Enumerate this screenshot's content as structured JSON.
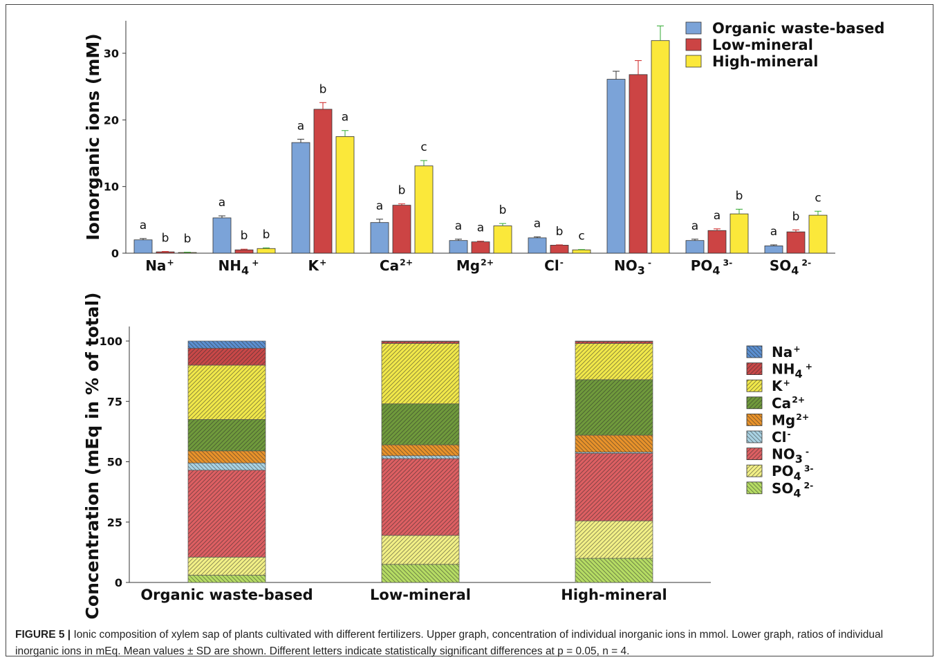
{
  "colors": {
    "organic": "#7ba3d8",
    "low": "#cc4444",
    "high": "#fbe83a",
    "Na": "#5b8fd0",
    "NH4": "#c84848",
    "K": "#f1e84a",
    "Ca": "#6f9a3c",
    "Mg": "#e8922a",
    "Cl": "#a9d2e3",
    "NO3": "#dd5f62",
    "PO4": "#f2f086",
    "SO4": "#b5dc63"
  },
  "chart_data": [
    {
      "type": "bar",
      "ylabel": "Ionorganic ions (mM)",
      "ylim": [
        0,
        35
      ],
      "yticks": [
        "0",
        "10",
        "20",
        "30"
      ],
      "categories": [
        {
          "base": "Na",
          "sup": "+",
          "sub": ""
        },
        {
          "base": "NH",
          "sub": "4",
          "sup": "+"
        },
        {
          "base": "K",
          "sup": "+",
          "sub": ""
        },
        {
          "base": "Ca",
          "sup": "2+",
          "sub": ""
        },
        {
          "base": "Mg",
          "sup": "2+",
          "sub": ""
        },
        {
          "base": "Cl",
          "sup": "-",
          "sub": ""
        },
        {
          "base": "NO",
          "sub": "3",
          "sup": "-"
        },
        {
          "base": "PO",
          "sub": "4",
          "sup": "3-"
        },
        {
          "base": "SO",
          "sub": "4",
          "sup": "2-"
        }
      ],
      "series": [
        {
          "name": "Organic waste-based",
          "key": "organic",
          "values": [
            2.0,
            5.3,
            16.6,
            4.6,
            1.9,
            2.3,
            26.1,
            1.9,
            1.1
          ],
          "sd": [
            0.2,
            0.3,
            0.5,
            0.5,
            0.2,
            0.15,
            1.2,
            0.2,
            0.15
          ],
          "letters": [
            "a",
            "a",
            "a",
            "a",
            "a",
            "a",
            "",
            "a",
            "a"
          ]
        },
        {
          "name": "Low-mineral",
          "key": "low",
          "values": [
            0.2,
            0.5,
            21.6,
            7.2,
            1.7,
            1.2,
            26.8,
            3.4,
            3.2
          ],
          "sd": [
            0.05,
            0.1,
            1.0,
            0.2,
            0.1,
            0.05,
            2.1,
            0.25,
            0.3
          ],
          "letters": [
            "b",
            "b",
            "b",
            "b",
            "a",
            "b",
            "",
            "a",
            "b"
          ]
        },
        {
          "name": "High-mineral",
          "key": "high",
          "values": [
            0.1,
            0.7,
            17.5,
            13.1,
            4.1,
            0.5,
            31.9,
            5.9,
            5.7
          ],
          "sd": [
            0.05,
            0.1,
            0.9,
            0.8,
            0.35,
            0.05,
            2.2,
            0.7,
            0.6
          ],
          "letters": [
            "b",
            "b",
            "a",
            "c",
            "b",
            "c",
            "",
            "b",
            "c"
          ]
        }
      ]
    },
    {
      "type": "bar",
      "stacked": true,
      "ylabel": "Concentration (mEq in % of total)",
      "ylim": [
        0,
        100
      ],
      "yticks": [
        "0",
        "25",
        "50",
        "75",
        "100"
      ],
      "categories": [
        "Organic waste-based",
        "Low-mineral",
        "High-mineral"
      ],
      "series": [
        {
          "name": "SO4",
          "label": {
            "base": "SO",
            "sub": "4",
            "sup": "2-"
          },
          "values": [
            3.0,
            7.5,
            10.0
          ],
          "hatch": "left"
        },
        {
          "name": "PO4",
          "label": {
            "base": "PO",
            "sub": "4",
            "sup": "3-"
          },
          "values": [
            7.5,
            12.0,
            15.5
          ],
          "hatch": "right"
        },
        {
          "name": "NO3",
          "label": {
            "base": "NO",
            "sub": "3",
            "sup": "-"
          },
          "values": [
            36.0,
            31.8,
            28.0
          ],
          "hatch": "right"
        },
        {
          "name": "Cl",
          "label": {
            "base": "Cl",
            "sub": "",
            "sup": "-"
          },
          "values": [
            3.0,
            1.2,
            0.5
          ],
          "hatch": "left"
        },
        {
          "name": "Mg",
          "label": {
            "base": "Mg",
            "sub": "",
            "sup": "2+"
          },
          "values": [
            5.0,
            4.5,
            7.0
          ],
          "hatch": "left"
        },
        {
          "name": "Ca",
          "label": {
            "base": "Ca",
            "sub": "",
            "sup": "2+"
          },
          "values": [
            13.0,
            17.0,
            23.0
          ],
          "hatch": "right"
        },
        {
          "name": "K",
          "label": {
            "base": "K",
            "sub": "",
            "sup": "+"
          },
          "values": [
            22.5,
            25.0,
            15.0
          ],
          "hatch": "right"
        },
        {
          "name": "NH4",
          "label": {
            "base": "NH",
            "sub": "4",
            "sup": "+"
          },
          "values": [
            7.0,
            0.8,
            0.8
          ],
          "hatch": "right"
        },
        {
          "name": "Na",
          "label": {
            "base": "Na",
            "sub": "",
            "sup": "+"
          },
          "values": [
            3.0,
            0.2,
            0.2
          ],
          "hatch": "left"
        }
      ],
      "legend_order": [
        "Na",
        "NH4",
        "K",
        "Ca",
        "Mg",
        "Cl",
        "NO3",
        "PO4",
        "SO4"
      ],
      "legend_position": "right"
    }
  ],
  "caption": {
    "label": "FIGURE 5 |",
    "text": " Ionic composition of xylem sap of plants cultivated with different fertilizers. Upper graph, concentration of individual inorganic ions in mmol. Lower graph, ratios of individual inorganic ions in mEq. Mean values ± SD are shown. Different letters indicate statistically significant differences at p = 0.05, n = 4."
  }
}
